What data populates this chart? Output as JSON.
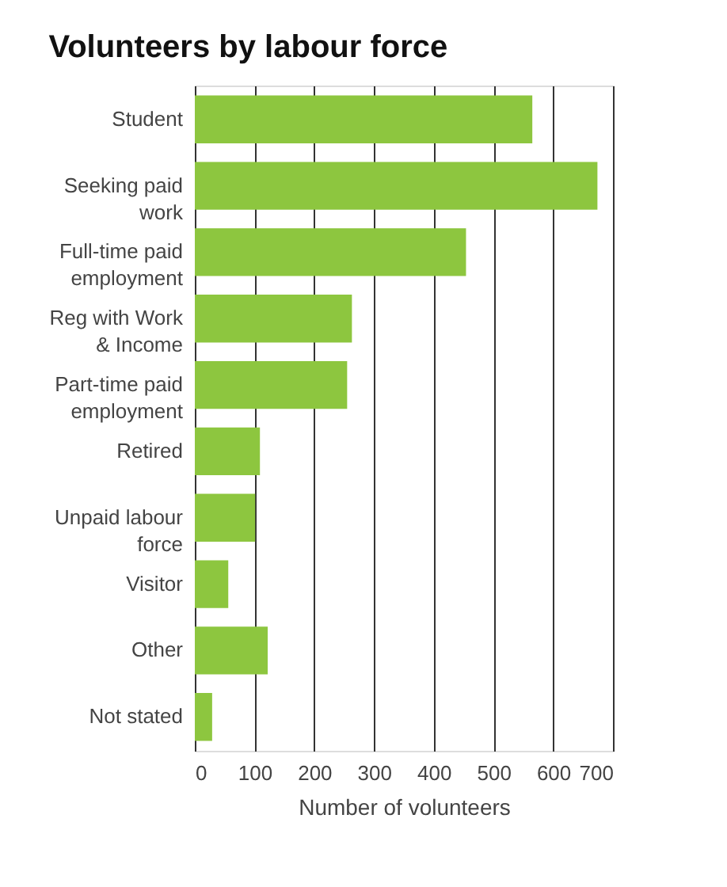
{
  "chart_data": {
    "type": "bar",
    "orientation": "horizontal",
    "title": "Volunteers by labour force",
    "categories": [
      "Student",
      "Seeking paid work",
      "Full-time paid employment",
      "Reg with Work & Income",
      "Part-time paid employment",
      "Retired",
      "Unpaid labour force",
      "Visitor",
      "Other",
      "Not stated"
    ],
    "values": [
      565,
      674,
      454,
      263,
      255,
      109,
      101,
      56,
      122,
      29
    ],
    "color": "#8dc63f",
    "xlim": [
      0,
      700
    ],
    "xticks": [
      0,
      100,
      200,
      300,
      400,
      500,
      600,
      700
    ],
    "xlabel": "Number of volunteers",
    "grid": "x"
  }
}
